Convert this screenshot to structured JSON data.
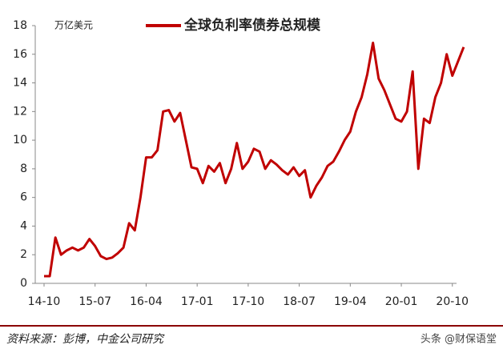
{
  "chart_data": {
    "type": "line",
    "ylabel": "万亿美元",
    "source": "资料来源：彭博，中金公司研究",
    "watermark": "头条 @财保语堂",
    "categories": [
      "14-10",
      null,
      null,
      null,
      null,
      null,
      null,
      null,
      null,
      "15-07",
      null,
      null,
      null,
      null,
      null,
      null,
      null,
      null,
      "16-04",
      null,
      null,
      null,
      null,
      null,
      null,
      null,
      null,
      "17-01",
      null,
      null,
      null,
      null,
      null,
      null,
      null,
      null,
      "17-10",
      null,
      null,
      null,
      null,
      null,
      null,
      null,
      null,
      "18-07",
      null,
      null,
      null,
      null,
      null,
      null,
      null,
      null,
      "19-04",
      null,
      null,
      null,
      null,
      null,
      null,
      null,
      null,
      "20-01",
      null,
      null,
      null,
      null,
      null,
      null,
      null,
      null,
      "20-10",
      null,
      null
    ],
    "series": [
      {
        "name": "全球负利率债券总规模",
        "color": "#c00000",
        "values": [
          0.5,
          0.5,
          3.2,
          2.0,
          2.3,
          2.5,
          2.3,
          2.5,
          3.1,
          2.6,
          1.9,
          1.7,
          1.8,
          2.1,
          2.5,
          4.2,
          3.7,
          6.0,
          8.8,
          8.8,
          9.3,
          12.0,
          12.1,
          11.3,
          11.9,
          10.0,
          8.1,
          8.0,
          7.0,
          8.2,
          7.8,
          8.4,
          7.0,
          8.0,
          9.8,
          8.0,
          8.5,
          9.4,
          9.2,
          8.0,
          8.6,
          8.3,
          7.9,
          7.6,
          8.1,
          7.5,
          7.9,
          6.0,
          6.8,
          7.4,
          8.2,
          8.5,
          9.2,
          10.0,
          10.6,
          12.0,
          13.0,
          14.6,
          16.8,
          14.3,
          13.5,
          12.5,
          11.5,
          11.3,
          12.0,
          14.8,
          8.0,
          11.5,
          11.2,
          13.0,
          14.0,
          16.0,
          14.5,
          15.5,
          16.5
        ]
      }
    ],
    "ylim": [
      0,
      18
    ],
    "yticks": [
      0,
      2,
      4,
      6,
      8,
      10,
      12,
      14,
      16,
      18
    ]
  }
}
